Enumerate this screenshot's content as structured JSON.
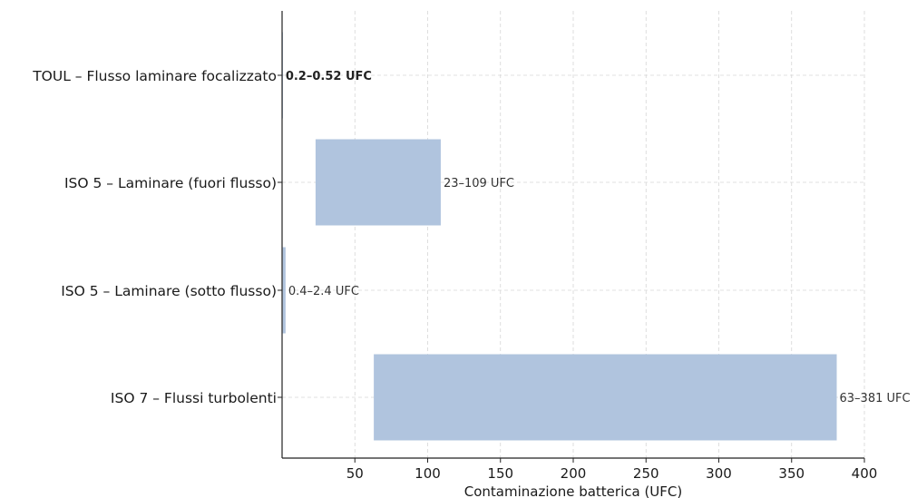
{
  "chart_data": {
    "type": "bar",
    "orientation": "horizontal",
    "title": "",
    "xlabel": "Contaminazione batterica (UFC)",
    "ylabel": "",
    "xlim": [
      0,
      400
    ],
    "xticks": [
      50,
      100,
      150,
      200,
      250,
      300,
      350,
      400
    ],
    "grid": true,
    "bar_color": "#b0c4de",
    "categories": [
      "TOUL – Flusso laminare focalizzato",
      "ISO 5 – Laminare (fuori flusso)",
      "ISO 5 – Laminare (sotto flusso)",
      "ISO 7 – Flussi turbolenti"
    ],
    "ranges": [
      {
        "category": "TOUL – Flusso laminare focalizzato",
        "min": 0.2,
        "max": 0.52,
        "label": "0.2–0.52 UFC",
        "label_bold": true
      },
      {
        "category": "ISO 5 – Laminare (fuori flusso)",
        "min": 23,
        "max": 109,
        "label": "23–109 UFC",
        "label_bold": false
      },
      {
        "category": "ISO 5 – Laminare (sotto flusso)",
        "min": 0.4,
        "max": 2.4,
        "label": "0.4–2.4 UFC",
        "label_bold": false
      },
      {
        "category": "ISO 7 – Flussi turbolenti",
        "min": 63,
        "max": 381,
        "label": "63–381 UFC",
        "label_bold": false
      }
    ]
  }
}
